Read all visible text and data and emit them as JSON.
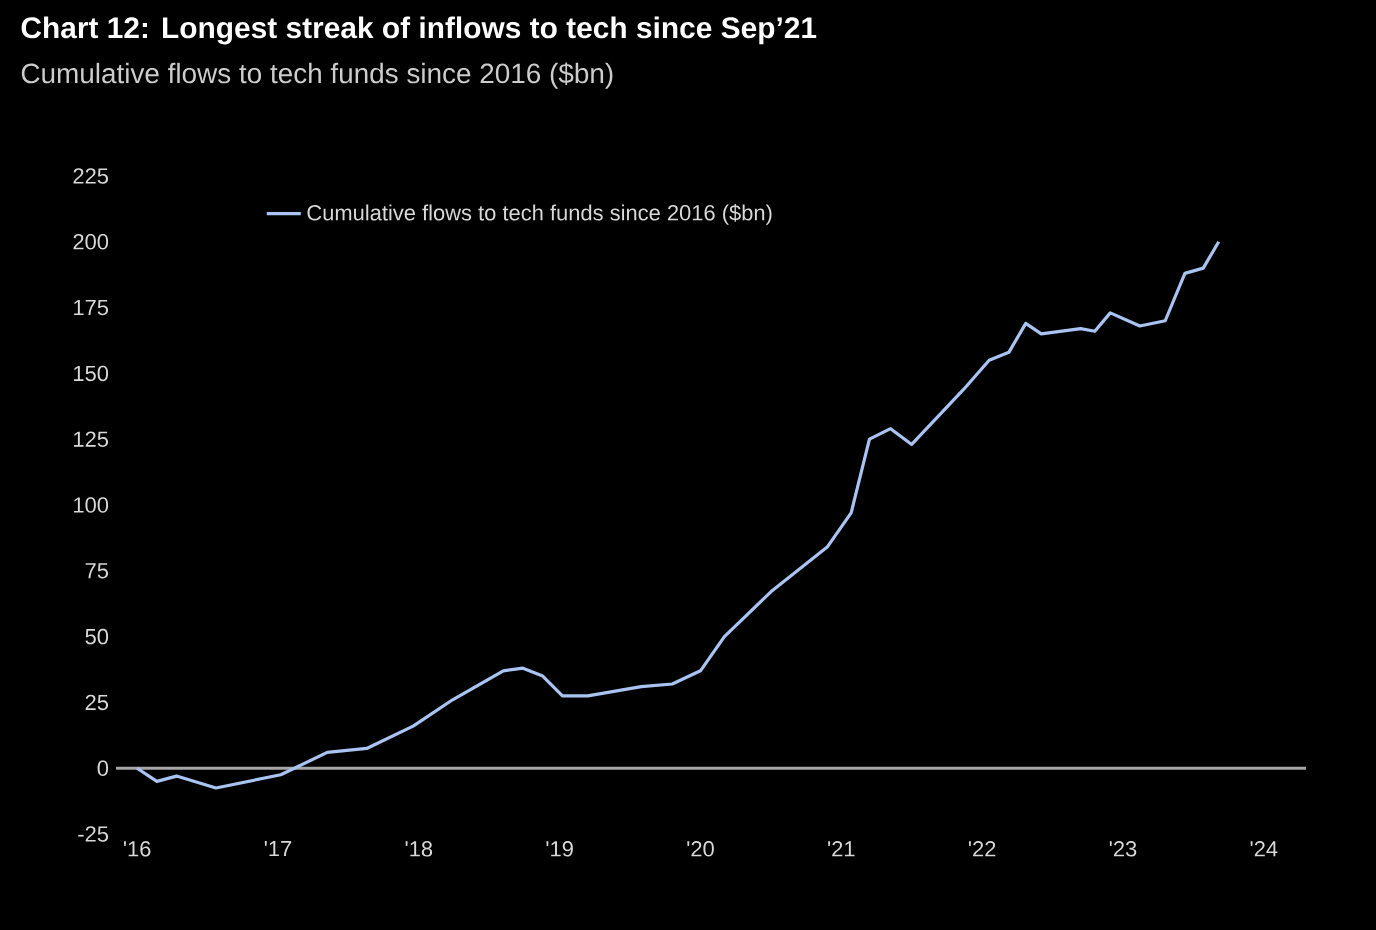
{
  "chart_data": {
    "type": "line",
    "title": "Chart 12: Longest streak of inflows to tech since Sep’21",
    "subtitle": "Cumulative flows to tech funds since 2016 ($bn)",
    "series": [
      {
        "name": "Cumulative flows to tech funds since 2016 ($bn)",
        "color": "#a9c4f2",
        "x": [
          2016.0,
          2016.14,
          2016.28,
          2016.56,
          2017.02,
          2017.35,
          2017.63,
          2017.96,
          2018.24,
          2018.6,
          2018.74,
          2018.88,
          2019.02,
          2019.2,
          2019.58,
          2019.8,
          2020.0,
          2020.17,
          2020.5,
          2020.9,
          2021.07,
          2021.2,
          2021.35,
          2021.5,
          2021.87,
          2022.05,
          2022.19,
          2022.31,
          2022.42,
          2022.7,
          2022.8,
          2022.91,
          2023.12,
          2023.3,
          2023.44,
          2023.57,
          2023.68
        ],
        "values": [
          0,
          -5,
          -3,
          -7.5,
          -2.5,
          6,
          7.5,
          16,
          26,
          37,
          38,
          35,
          27.5,
          27.5,
          31,
          32,
          37,
          50,
          67,
          84,
          97,
          125,
          129,
          123,
          144,
          155,
          158,
          169,
          165,
          167,
          166,
          173,
          168,
          170,
          188,
          190,
          200
        ]
      }
    ],
    "xlim": [
      2015.85,
      2024.3
    ],
    "ylim": [
      -25,
      225
    ],
    "xticks": [
      {
        "value": 2016,
        "label": "'16"
      },
      {
        "value": 2017,
        "label": "'17"
      },
      {
        "value": 2018,
        "label": "'18"
      },
      {
        "value": 2019,
        "label": "'19"
      },
      {
        "value": 2020,
        "label": "'20"
      },
      {
        "value": 2021,
        "label": "'21"
      },
      {
        "value": 2022,
        "label": "'22"
      },
      {
        "value": 2023,
        "label": "'23"
      },
      {
        "value": 2024,
        "label": "'24"
      }
    ],
    "yticks": [
      -25,
      0,
      25,
      50,
      75,
      100,
      125,
      150,
      175,
      200,
      225
    ],
    "ref_lines": [
      {
        "axis": "y",
        "value": 0,
        "color": "#a6a6a6"
      }
    ],
    "legend": "top left",
    "grid": false,
    "marker": "none",
    "line_style": "solid"
  }
}
